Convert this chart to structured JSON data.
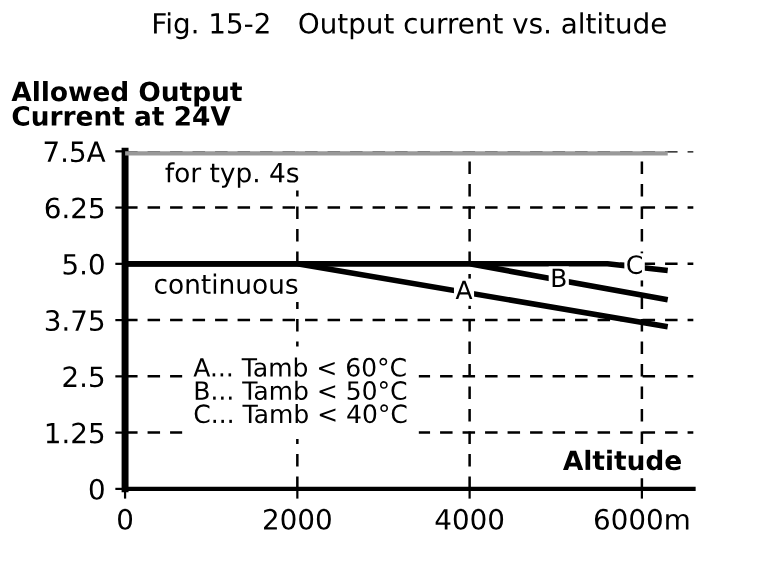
{
  "chart_data": {
    "type": "line",
    "title": "Fig. 15-2   Output current vs. altitude",
    "ylabel": "Allowed Output\nCurrent at 24V",
    "xlabel": "Altitude",
    "series": [
      {
        "name": null,
        "color": "#999999",
        "x": [
          0,
          6300
        ],
        "values": [
          7.5,
          7.5
        ]
      },
      {
        "name": "A",
        "color": "#000000",
        "x": [
          0,
          2000,
          6300
        ],
        "values": [
          5.0,
          5.0,
          3.6
        ]
      },
      {
        "name": "B",
        "color": "#000000",
        "x": [
          0,
          4000,
          6300
        ],
        "values": [
          5.0,
          5.0,
          4.2
        ]
      },
      {
        "name": "C",
        "color": "#000000",
        "x": [
          0,
          5600,
          6300
        ],
        "values": [
          5.0,
          5.0,
          4.85
        ]
      }
    ],
    "xlim": [
      0,
      6600
    ],
    "ylim": [
      0,
      7.5
    ],
    "xticks": [
      0,
      2000,
      4000,
      {
        "value": 6000,
        "label": "6000m"
      }
    ],
    "yticks": [
      0,
      1.25,
      2.5,
      3.75,
      {
        "value": 5.0,
        "label": "5.0"
      },
      6.25,
      {
        "value": 7.5,
        "label": "7.5A"
      }
    ],
    "grid": true,
    "line_style": "solid",
    "marker": "none",
    "legend": false,
    "annotations": [
      "for typ. 4s",
      "continuous",
      "A... Tamb < 60°C\nB... Tamb < 50°C\nC... Tamb < 40°C"
    ]
  }
}
